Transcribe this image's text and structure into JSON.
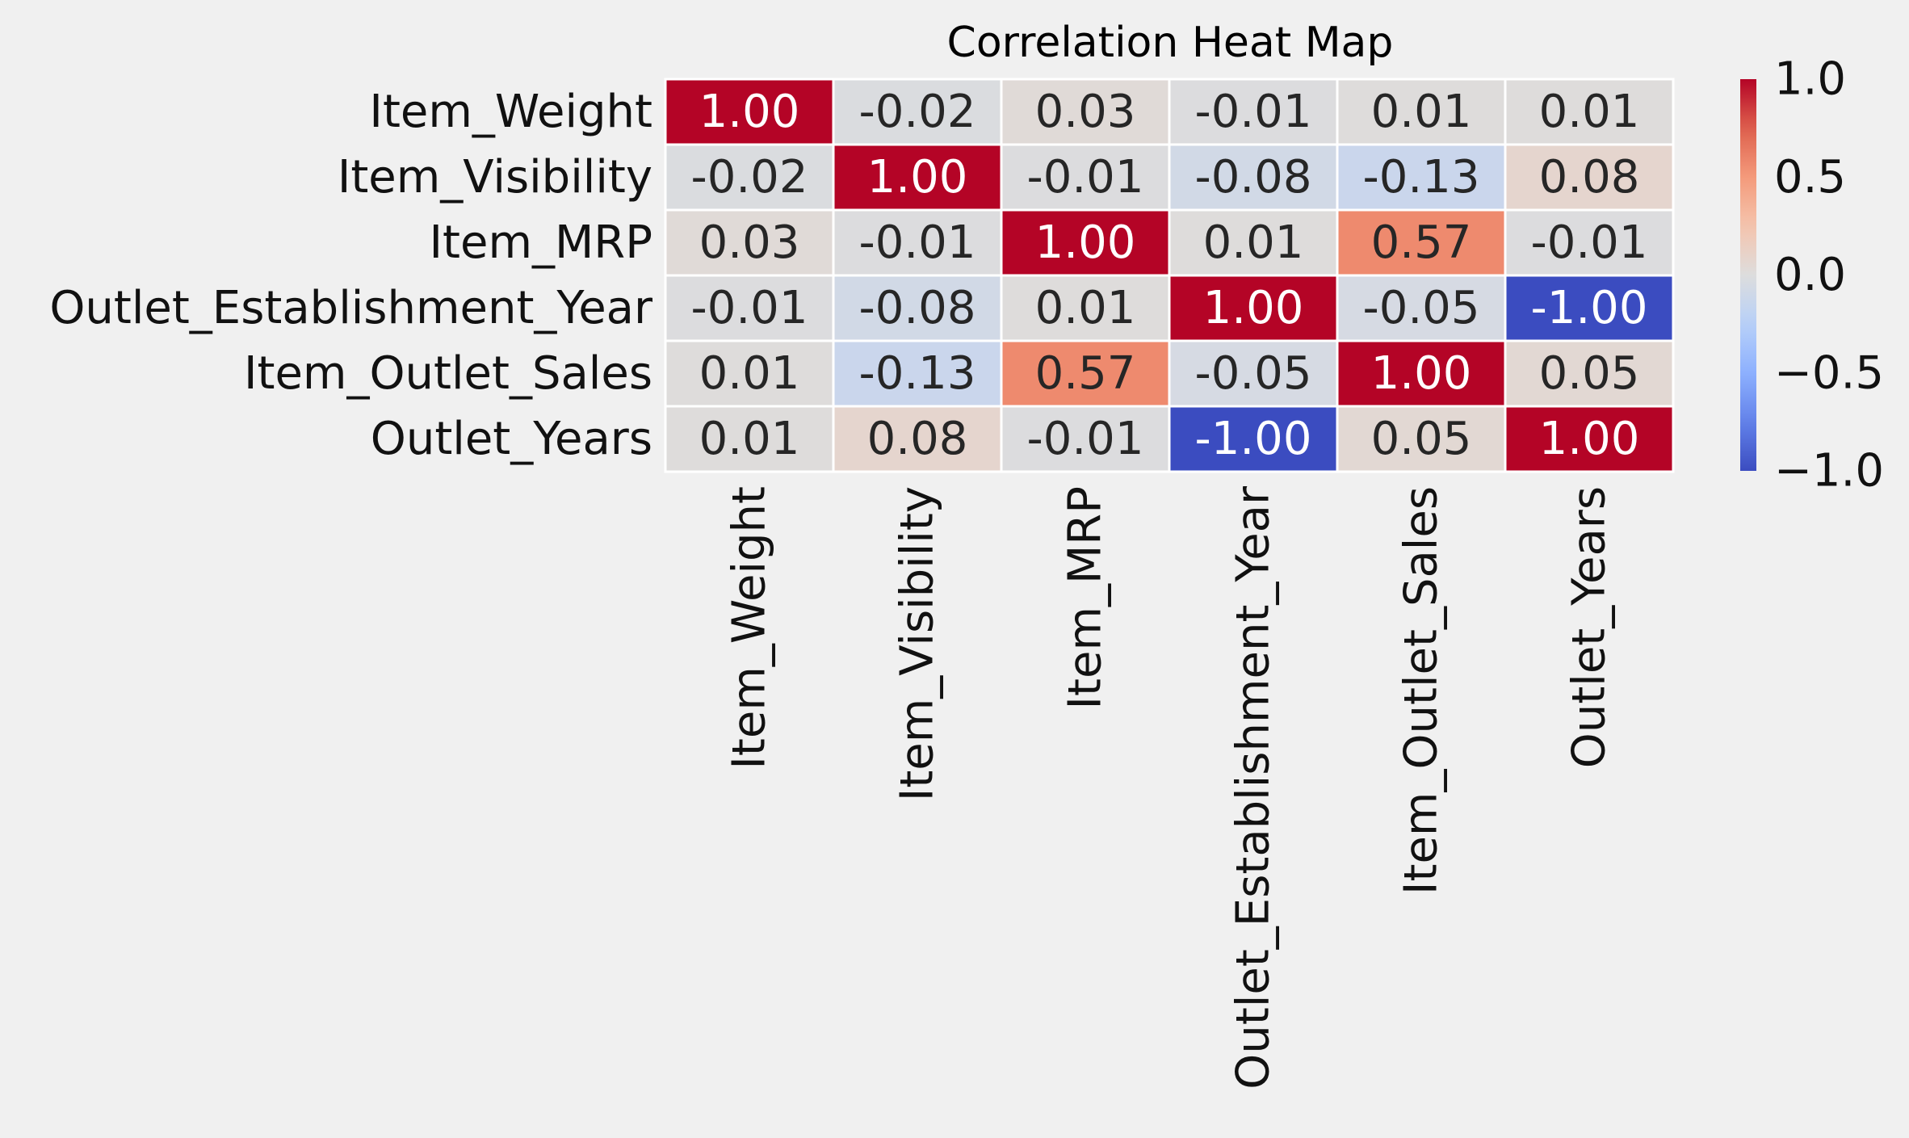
{
  "chart_data": {
    "type": "heatmap",
    "title": "Correlation Heat Map",
    "rows": [
      "Item_Weight",
      "Item_Visibility",
      "Item_MRP",
      "Outlet_Establishment_Year",
      "Item_Outlet_Sales",
      "Outlet_Years"
    ],
    "columns": [
      "Item_Weight",
      "Item_Visibility",
      "Item_MRP",
      "Outlet_Establishment_Year",
      "Item_Outlet_Sales",
      "Outlet_Years"
    ],
    "values": [
      [
        1.0,
        -0.02,
        0.03,
        -0.01,
        0.01,
        0.01
      ],
      [
        -0.02,
        1.0,
        -0.01,
        -0.08,
        -0.13,
        0.08
      ],
      [
        0.03,
        -0.01,
        1.0,
        0.01,
        0.57,
        -0.01
      ],
      [
        -0.01,
        -0.08,
        0.01,
        1.0,
        -0.05,
        -1.0
      ],
      [
        0.01,
        -0.13,
        0.57,
        -0.05,
        1.0,
        0.05
      ],
      [
        0.01,
        0.08,
        -0.01,
        -1.0,
        0.05,
        1.0
      ]
    ],
    "value_format": "0.00",
    "colormap": "coolwarm",
    "vmin": -1.0,
    "vmax": 1.0,
    "colorbar": {
      "ticks": [
        1.0,
        0.5,
        0.0,
        -0.5,
        -1.0
      ],
      "tick_labels": [
        "1.0",
        "0.5",
        "0.0",
        "−0.5",
        "−1.0"
      ]
    },
    "grid": false,
    "legend": "colorbar-right",
    "colors": {
      "background": "#f0f0f0",
      "cell_separator": "#ffffff",
      "low": "#3b4cc0",
      "mid": "#dddddd",
      "high": "#b40426"
    }
  }
}
